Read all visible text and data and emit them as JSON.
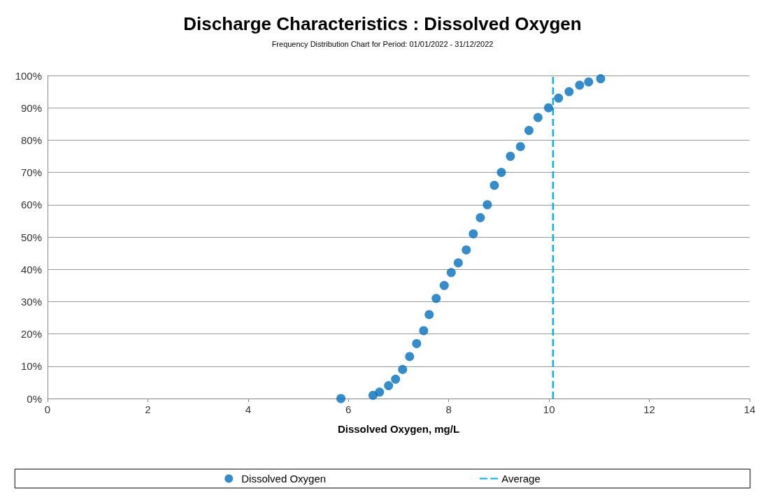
{
  "chart_data": {
    "type": "scatter",
    "title": "Discharge Characteristics : Dissolved Oxygen",
    "subtitle": "Frequency Distribution Chart for Period: 01/01/2022 - 31/12/2022",
    "xlabel": "Dissolved Oxygen, mg/L",
    "series": [
      {
        "name": "Dissolved Oxygen",
        "color": "#0070c0",
        "x": [
          5.85,
          6.49,
          6.62,
          6.8,
          6.94,
          7.08,
          7.22,
          7.36,
          7.5,
          7.61,
          7.75,
          7.91,
          8.05,
          8.19,
          8.35,
          8.49,
          8.63,
          8.77,
          8.91,
          9.05,
          9.23,
          9.43,
          9.6,
          9.78,
          9.99,
          10.19,
          10.4,
          10.61,
          10.79,
          11.03
        ],
        "values": [
          0,
          1,
          2,
          4,
          6,
          9,
          13,
          17,
          21,
          26,
          31,
          35,
          39,
          42,
          46,
          51,
          56,
          60,
          66,
          70,
          75,
          78,
          83,
          87,
          90,
          93,
          95,
          97,
          98,
          99
        ]
      }
    ],
    "ref_lines": [
      {
        "axis": "x",
        "value": 10.08,
        "label": "Average",
        "color": "#00b0f0",
        "line_style": "dashed"
      }
    ],
    "xlim": [
      0,
      14
    ],
    "xticks": [
      0,
      2,
      4,
      6,
      8,
      10,
      12,
      14
    ],
    "ylim": [
      0,
      100
    ],
    "yticks": [
      {
        "value": 0,
        "label": "0%"
      },
      {
        "value": 10,
        "label": "10%"
      },
      {
        "value": 20,
        "label": "20%"
      },
      {
        "value": 30,
        "label": "30%"
      },
      {
        "value": 40,
        "label": "40%"
      },
      {
        "value": 50,
        "label": "50%"
      },
      {
        "value": 60,
        "label": "60%"
      },
      {
        "value": 70,
        "label": "70%"
      },
      {
        "value": 80,
        "label": "80%"
      },
      {
        "value": 90,
        "label": "90%"
      },
      {
        "value": 100,
        "label": "100%"
      }
    ],
    "grid": "y",
    "legend": "bottom",
    "marker": "circle"
  }
}
